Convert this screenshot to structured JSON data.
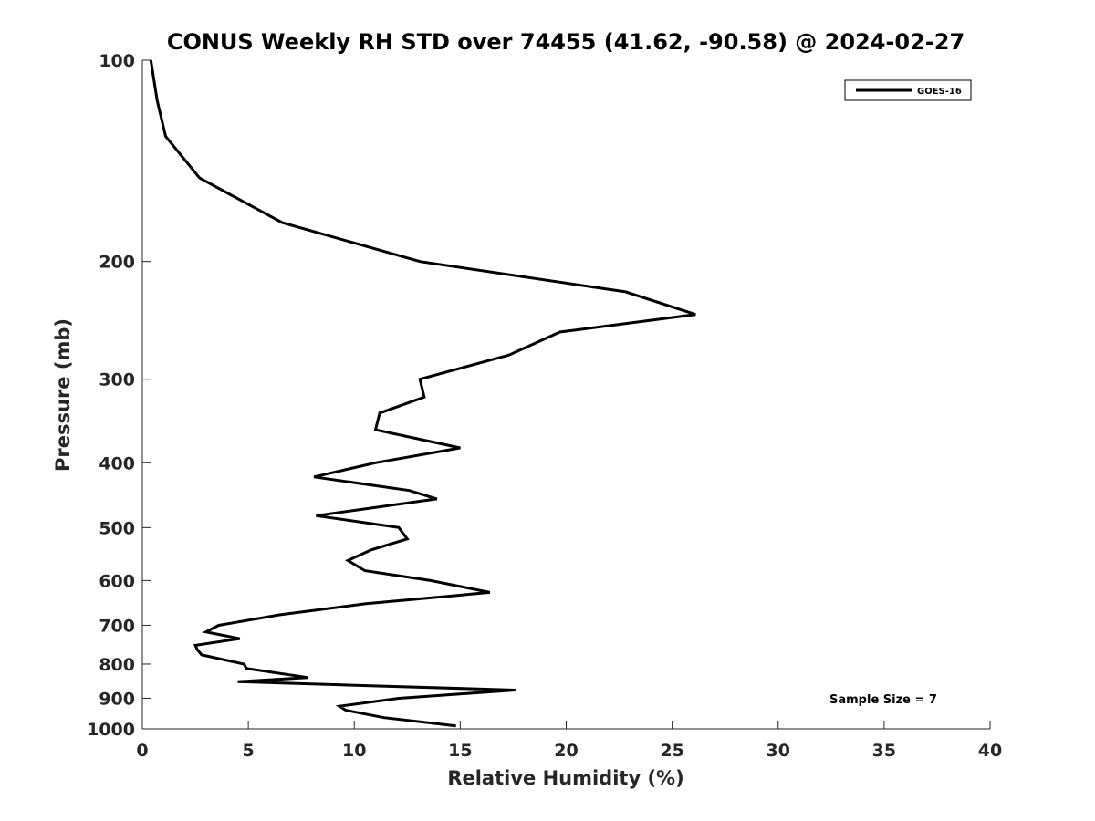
{
  "chart_data": {
    "type": "line",
    "title": "CONUS Weekly RH STD over 74455 (41.62, -90.58) @ 2024-02-27",
    "xlabel": "Relative Humidity (%)",
    "ylabel": "Pressure (mb)",
    "xlim": [
      0,
      40
    ],
    "ylim": [
      100,
      1000
    ],
    "y_scale": "log",
    "y_reversed": true,
    "x_ticks": [
      0,
      5,
      10,
      15,
      20,
      25,
      30,
      35,
      40
    ],
    "x_tick_labels": [
      "0",
      "5",
      "10",
      "15",
      "20",
      "25",
      "30",
      "35",
      "40"
    ],
    "y_ticks": [
      100,
      200,
      300,
      400,
      500,
      600,
      700,
      800,
      900,
      1000
    ],
    "y_tick_labels": [
      "100",
      "200",
      "300",
      "400",
      "500",
      "600",
      "700",
      "800",
      "900",
      "1000"
    ],
    "grid": false,
    "legend": {
      "position": "top-right",
      "entries": [
        "GOES-16"
      ]
    },
    "annotation": "Sample Size = 7",
    "series": [
      {
        "name": "GOES-16",
        "color": "#000000",
        "points": [
          [
            0.4,
            100
          ],
          [
            0.7,
            115
          ],
          [
            1.1,
            130
          ],
          [
            2.7,
            150
          ],
          [
            6.6,
            175
          ],
          [
            13.1,
            200
          ],
          [
            22.8,
            222
          ],
          [
            26.1,
            240
          ],
          [
            19.7,
            255
          ],
          [
            17.3,
            276
          ],
          [
            13.1,
            300
          ],
          [
            13.3,
            319
          ],
          [
            11.2,
            337
          ],
          [
            11.0,
            357
          ],
          [
            15.0,
            380
          ],
          [
            11.0,
            400
          ],
          [
            8.1,
            420
          ],
          [
            12.6,
            440
          ],
          [
            13.9,
            453
          ],
          [
            8.2,
            480
          ],
          [
            12.1,
            500
          ],
          [
            12.5,
            520
          ],
          [
            10.8,
            540
          ],
          [
            9.7,
            560
          ],
          [
            10.5,
            580
          ],
          [
            13.6,
            600
          ],
          [
            16.4,
            625
          ],
          [
            10.5,
            650
          ],
          [
            6.5,
            675
          ],
          [
            3.6,
            700
          ],
          [
            3.0,
            716
          ],
          [
            4.6,
            733
          ],
          [
            2.5,
            750
          ],
          [
            2.6,
            762
          ],
          [
            2.8,
            775
          ],
          [
            4.8,
            800
          ],
          [
            4.9,
            812
          ],
          [
            7.8,
            838
          ],
          [
            4.5,
            850
          ],
          [
            17.6,
            875
          ],
          [
            12.1,
            900
          ],
          [
            9.3,
            925
          ],
          [
            9.6,
            938
          ],
          [
            11.4,
            962
          ],
          [
            14.8,
            990
          ]
        ]
      }
    ]
  }
}
